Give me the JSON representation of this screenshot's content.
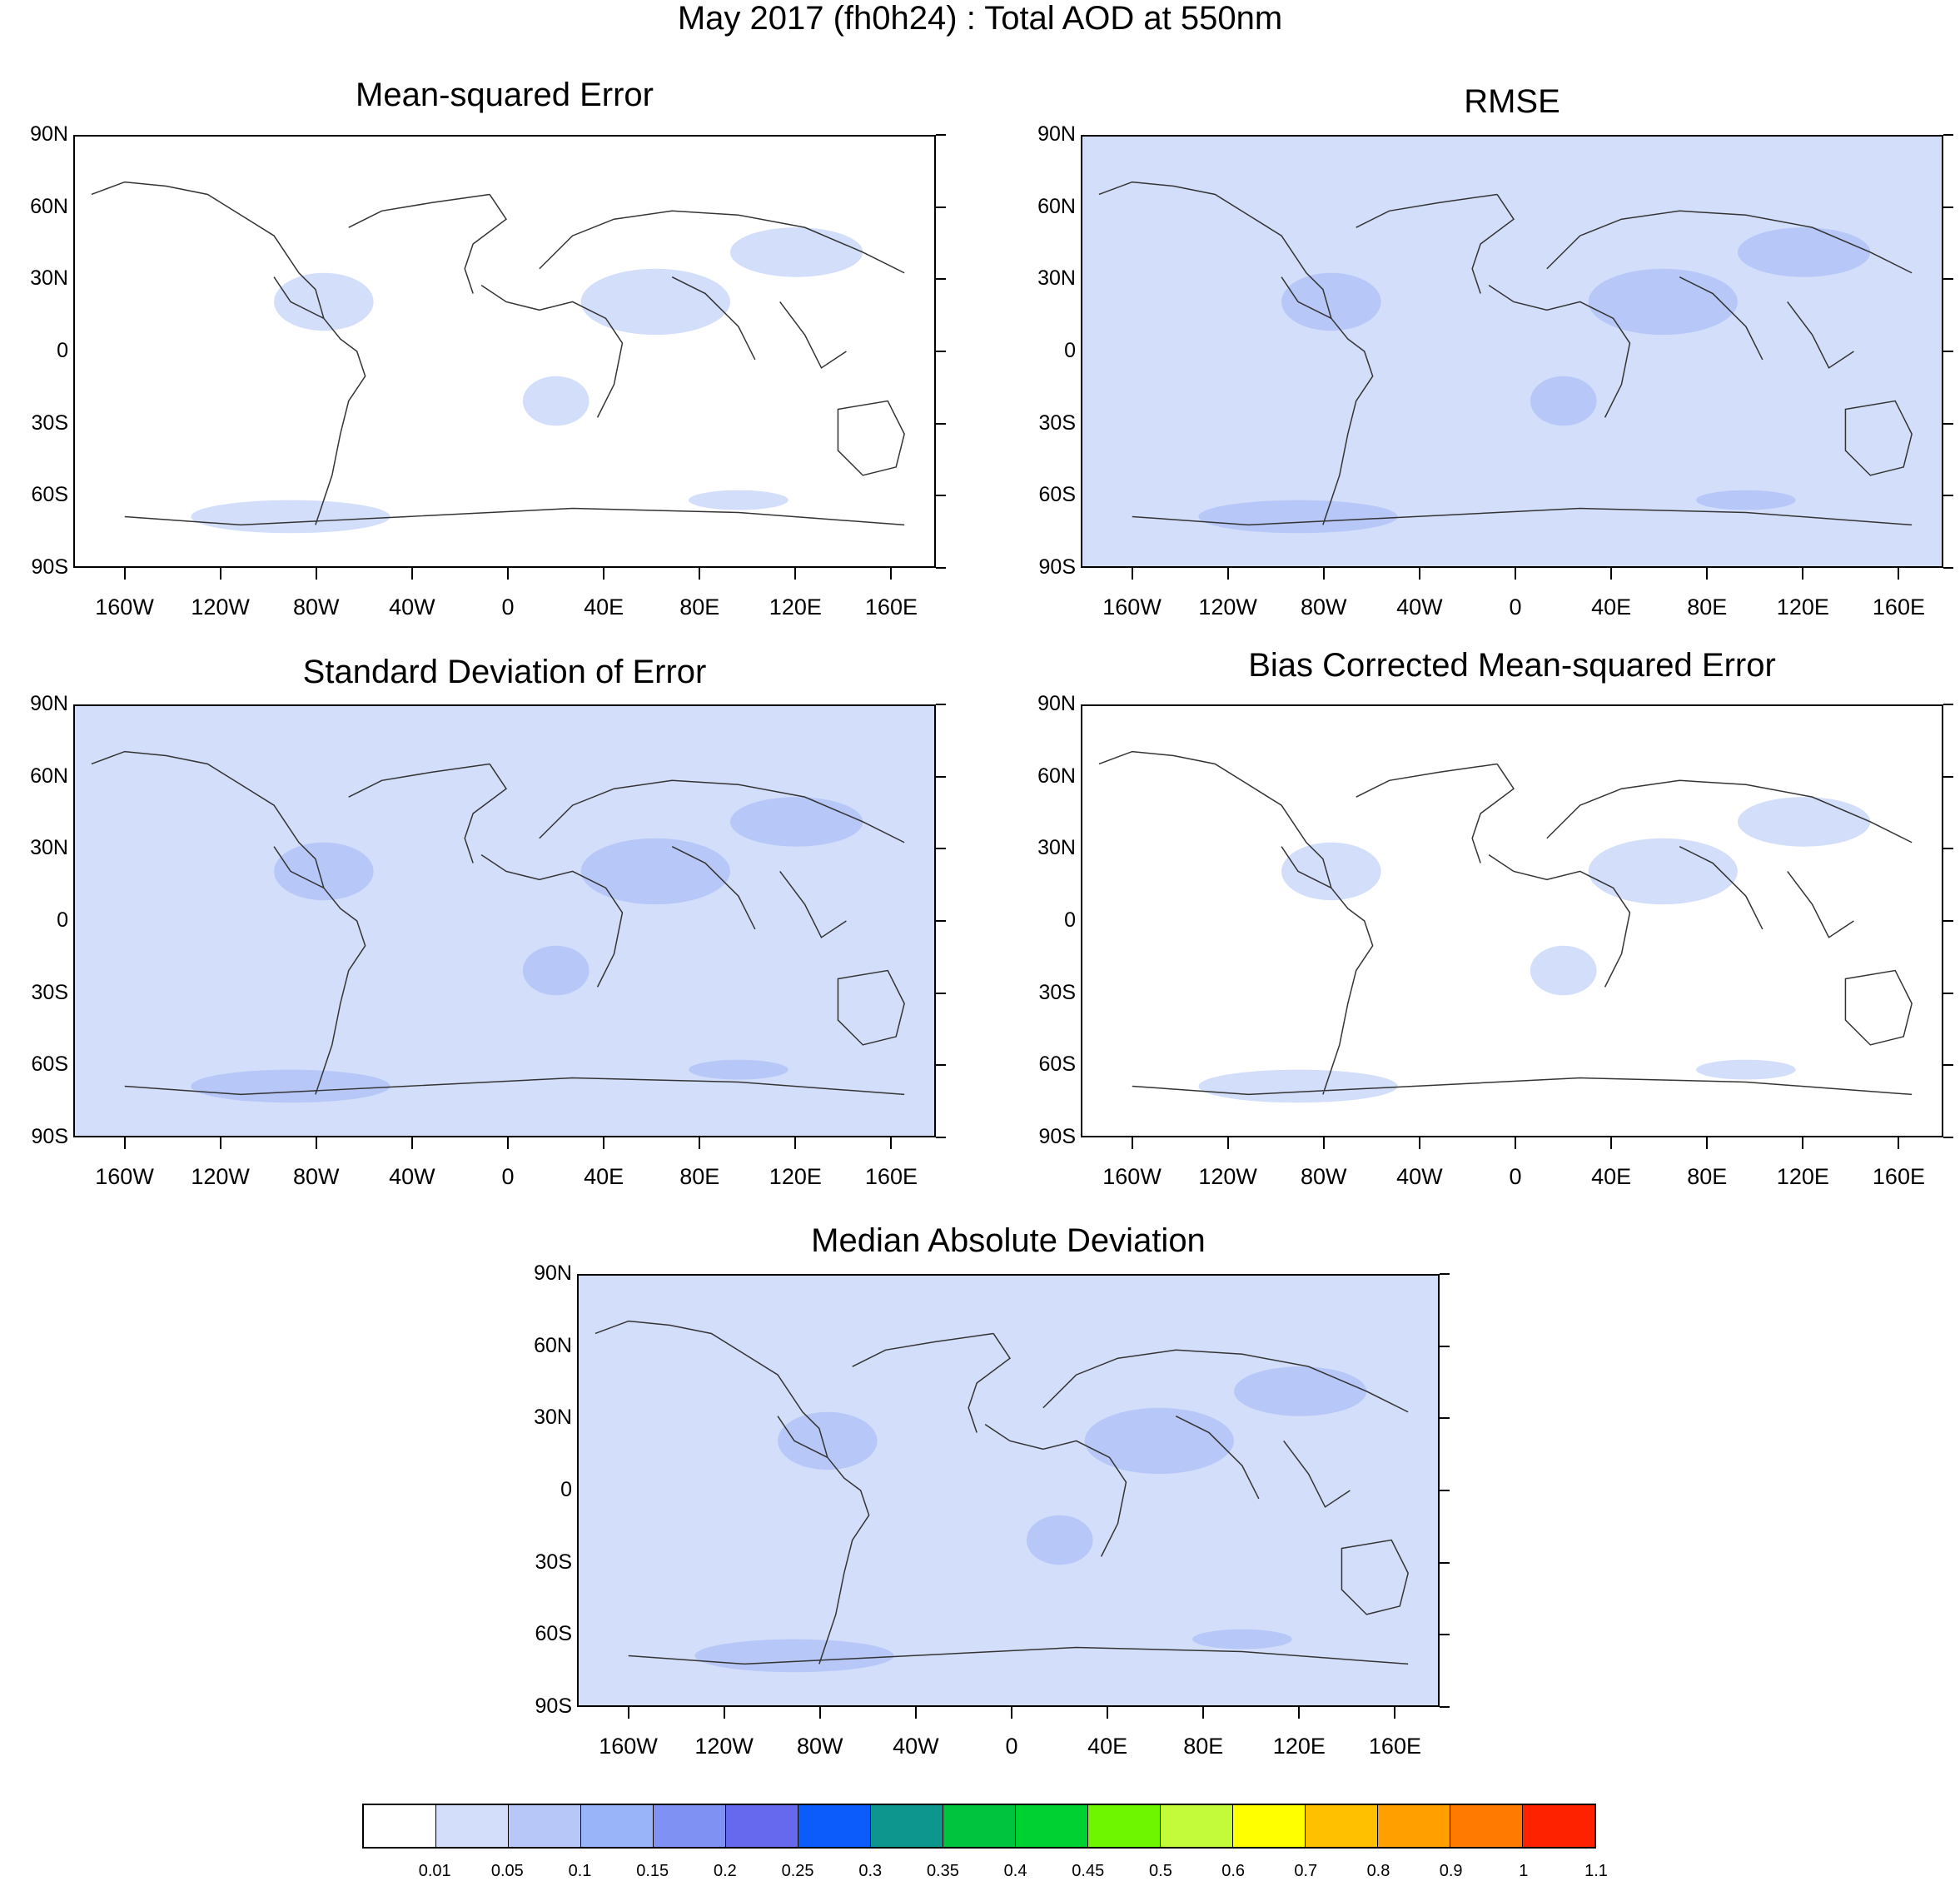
{
  "main_title": "May 2017 (fh0h24) : Total AOD at 550nm",
  "lat_labels": [
    "90N",
    "60N",
    "30N",
    "0",
    "30S",
    "60S",
    "90S"
  ],
  "lon_labels": [
    "160W",
    "120W",
    "80W",
    "40W",
    "0",
    "40E",
    "80E",
    "120E",
    "160E"
  ],
  "panels": [
    {
      "id": "mse",
      "title": "Mean-squared Error",
      "shade": "#ffffff"
    },
    {
      "id": "rmse",
      "title": "RMSE",
      "shade": "#d3defa"
    },
    {
      "id": "std",
      "title": "Standard Deviation of Error",
      "shade": "#d3defa"
    },
    {
      "id": "bcmse",
      "title": "Bias Corrected Mean-squared Error",
      "shade": "#ffffff"
    },
    {
      "id": "mad",
      "title": "Median Absolute Deviation",
      "shade": "#d3defa"
    }
  ],
  "colorbar": {
    "colors": [
      "#ffffff",
      "#d3defa",
      "#b7c8f8",
      "#99b4f8",
      "#7f92f4",
      "#6669ee",
      "#0c5cfb",
      "#0c968e",
      "#00c33e",
      "#00d132",
      "#6ef500",
      "#c3fa3a",
      "#ffff00",
      "#ffc000",
      "#ffa000",
      "#ff7a00",
      "#ff2200"
    ],
    "labels": [
      "0.01",
      "0.05",
      "0.1",
      "0.15",
      "0.2",
      "0.25",
      "0.3",
      "0.35",
      "0.4",
      "0.45",
      "0.5",
      "0.6",
      "0.7",
      "0.8",
      "0.9",
      "1",
      "1.1"
    ]
  }
}
